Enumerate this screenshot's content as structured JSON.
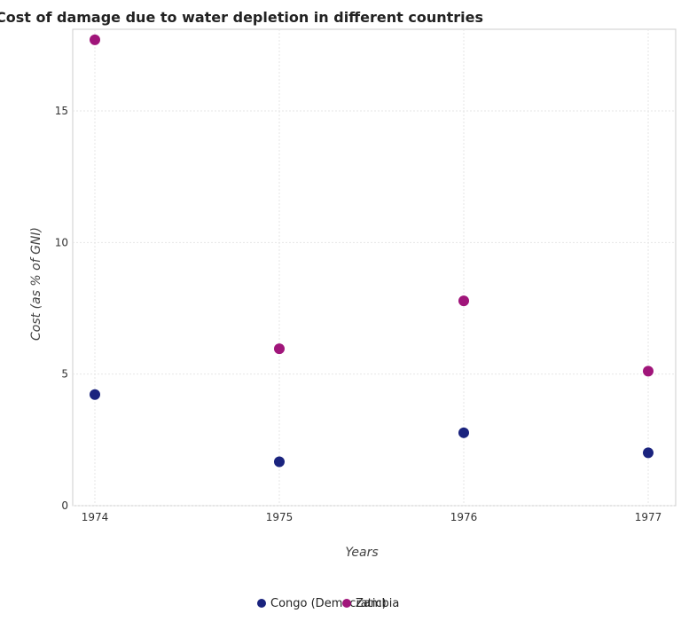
{
  "chart_data": {
    "type": "scatter",
    "title": "Cost of damage due to water depletion in different countries",
    "xlabel": "Years",
    "ylabel": "Cost (as % of GNI)",
    "categories": [
      "1974",
      "1975",
      "1976",
      "1977"
    ],
    "yticks": [
      "0",
      "5",
      "10",
      "15"
    ],
    "ylim": [
      0,
      18.1
    ],
    "grid": true,
    "legend_position": "bottom-center",
    "series": [
      {
        "name": "Congo (Democratic)",
        "color": "#1a237e",
        "values": [
          4.22,
          1.67,
          2.77,
          2.01
        ]
      },
      {
        "name": "Zambia",
        "color": "#a0157a",
        "values": [
          17.7,
          5.96,
          7.78,
          5.11
        ]
      }
    ]
  }
}
